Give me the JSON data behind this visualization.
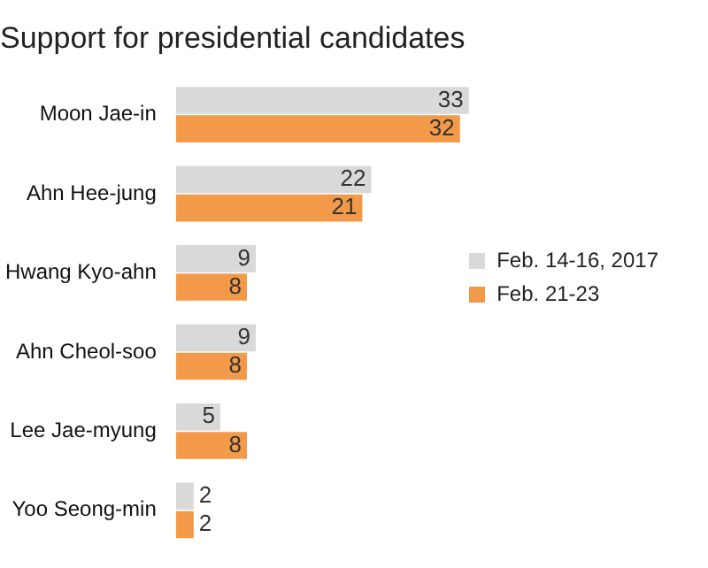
{
  "chart_data": {
    "type": "bar",
    "title": "Support for presidential candidates",
    "orientation": "horizontal",
    "categories": [
      "Moon Jae-in",
      "Ahn Hee-jung",
      "Hwang Kyo-ahn",
      "Ahn Cheol-soo",
      "Lee Jae-myung",
      "Yoo Seong-min"
    ],
    "series": [
      {
        "name": "Feb. 14-16, 2017",
        "color": "#d9d9d9",
        "values": [
          33,
          22,
          9,
          9,
          5,
          2
        ]
      },
      {
        "name": "Feb. 21-23",
        "color": "#f39a4a",
        "values": [
          32,
          21,
          8,
          8,
          8,
          2
        ]
      }
    ],
    "data_labels": true,
    "legend": "right"
  }
}
